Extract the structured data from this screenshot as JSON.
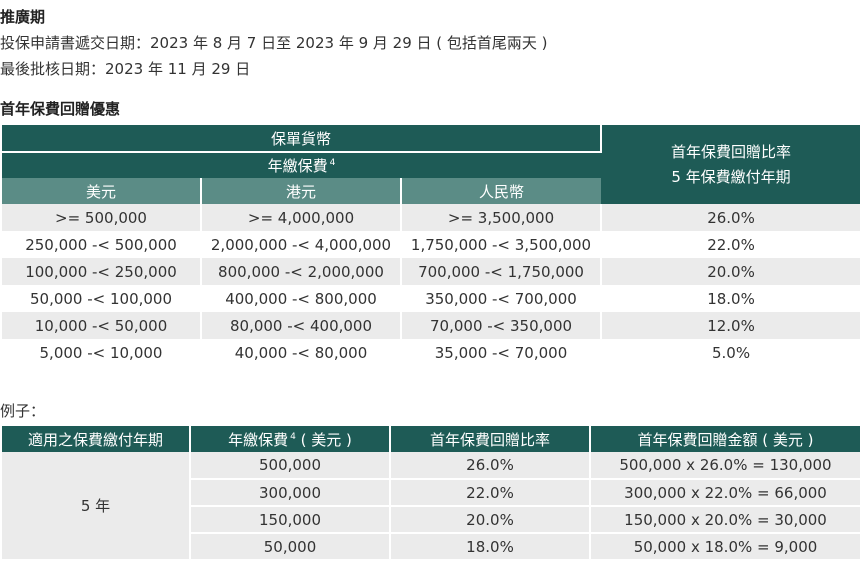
{
  "promo": {
    "title": "推廣期",
    "submission": "投保申請書遞交日期：2023 年 8 月 7 日至 2023 年 9 月 29 日 ( 包括首尾兩天 )",
    "approval": "最後批核日期：2023 年 11 月 29 日"
  },
  "rebate": {
    "title": "首年保費回贈優惠",
    "header": {
      "currency": "保單貨幣",
      "annual_premium": "年繳保費",
      "footnote": "4",
      "rate_line1": "首年保費回贈比率",
      "rate_line2": "5 年保費繳付年期",
      "col_usd": "美元",
      "col_hkd": "港元",
      "col_rmb": "人民幣"
    },
    "rows": [
      {
        "usd": ">= 500,000",
        "hkd": ">= 4,000,000",
        "rmb": ">= 3,500,000",
        "rate": "26.0%"
      },
      {
        "usd": "250,000 -< 500,000",
        "hkd": "2,000,000 -< 4,000,000",
        "rmb": "1,750,000 -< 3,500,000",
        "rate": "22.0%"
      },
      {
        "usd": "100,000 -< 250,000",
        "hkd": "800,000 -< 2,000,000",
        "rmb": "700,000 -< 1,750,000",
        "rate": "20.0%"
      },
      {
        "usd": "50,000 -< 100,000",
        "hkd": "400,000 -< 800,000",
        "rmb": "350,000 -< 700,000",
        "rate": "18.0%"
      },
      {
        "usd": "10,000 -< 50,000",
        "hkd": "80,000 -< 400,000",
        "rmb": "70,000 -< 350,000",
        "rate": "12.0%"
      },
      {
        "usd": "5,000 -< 10,000",
        "hkd": "40,000 -< 80,000",
        "rmb": "35,000 -< 70,000",
        "rate": "5.0%"
      }
    ]
  },
  "example": {
    "title": "例子：",
    "header": {
      "term": "適用之保費繳付年期",
      "premium_pre": "年繳保費",
      "footnote": "4",
      "premium_post": "( 美元 )",
      "rate": "首年保費回贈比率",
      "amount": "首年保費回贈金額 ( 美元 )"
    },
    "term_value": "5 年",
    "rows": [
      {
        "premium": "500,000",
        "rate": "26.0%",
        "amount": "500,000 x 26.0% = 130,000"
      },
      {
        "premium": "300,000",
        "rate": "22.0%",
        "amount": "300,000 x 22.0% = 66,000"
      },
      {
        "premium": "150,000",
        "rate": "20.0%",
        "amount": "150,000 x 20.0% = 30,000"
      },
      {
        "premium": "50,000",
        "rate": "18.0%",
        "amount": "50,000 x 18.0% = 9,000"
      }
    ]
  }
}
